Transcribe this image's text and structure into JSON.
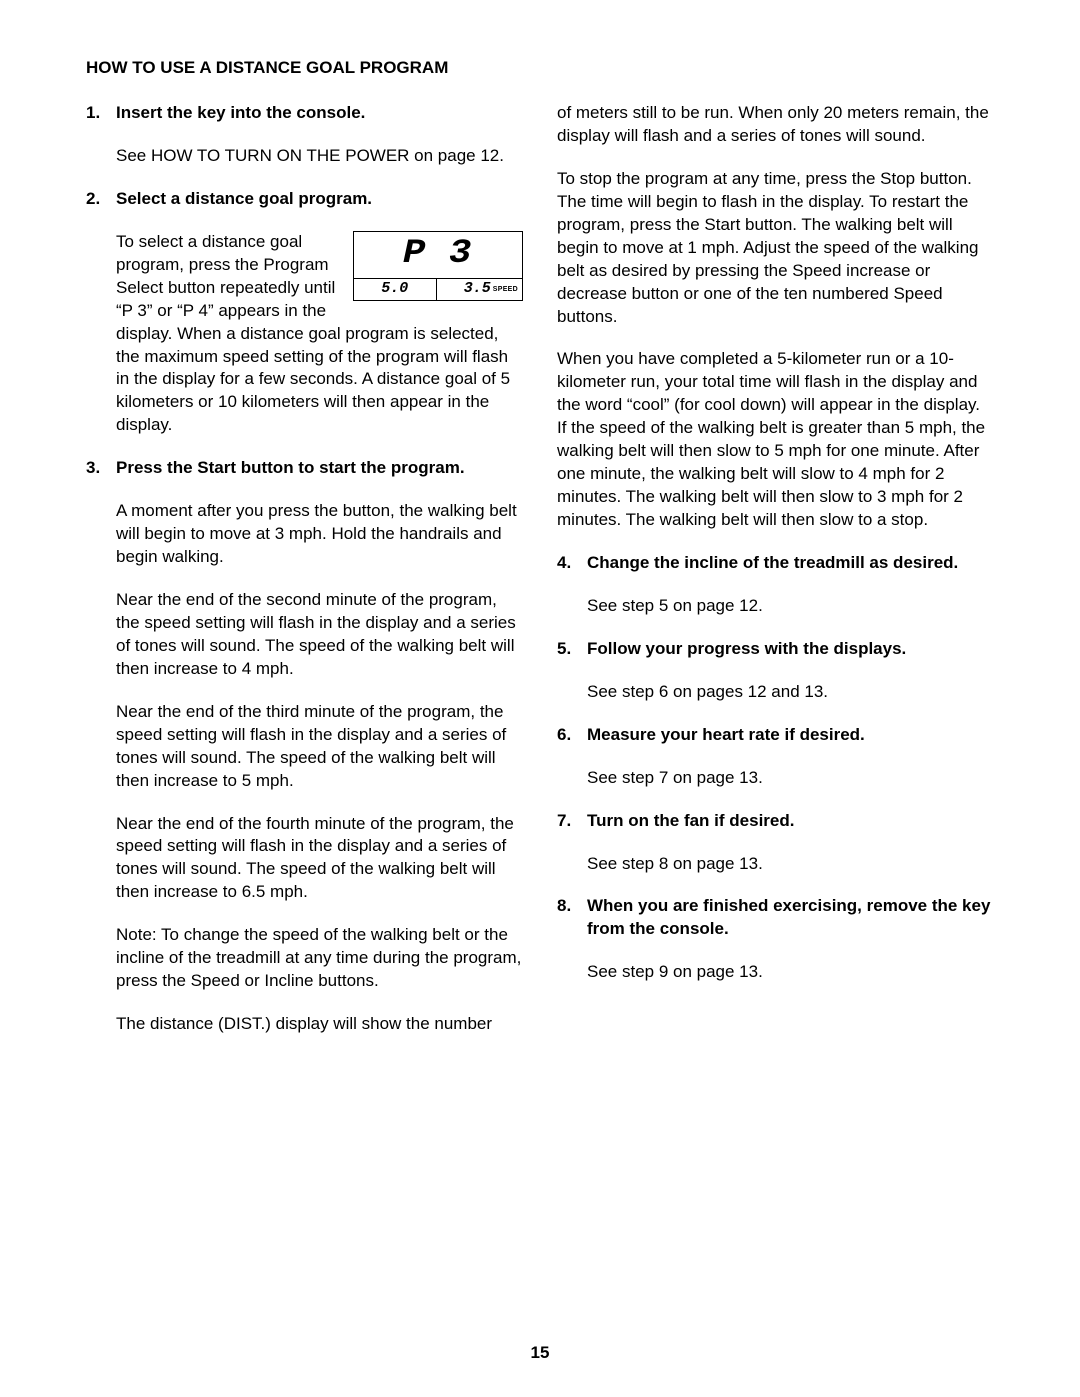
{
  "heading": "HOW TO USE A DISTANCE GOAL PROGRAM",
  "page_number": "15",
  "lcd": {
    "top_left": "P",
    "top_right": "3",
    "bottom_left": "5.0",
    "bottom_right": "3.5",
    "speed_label": "SPEED"
  },
  "left": {
    "s1_num": "1.",
    "s1_title": "Insert the key into the console.",
    "s1_p1": "See HOW TO TURN ON THE POWER on page 12.",
    "s2_num": "2.",
    "s2_title": "Select a distance goal program.",
    "s2_p1a": "To select a distance goal program, press the Program Select button repeatedly until “P 3” or “P 4” appears in the display. When a",
    "s2_p1b": "distance goal program is selected, the maximum speed setting of the program will flash in the display for a few seconds. A distance goal of 5 kilometers or 10 kilometers will then appear in the display.",
    "s3_num": "3.",
    "s3_title": "Press the Start button to start the program.",
    "s3_p1": "A moment after you press the button, the walking belt will begin to move at 3 mph. Hold the handrails and begin walking.",
    "s3_p2": "Near the end of the second minute of the program, the speed setting will flash in the display and a series of tones will sound. The speed of the walking belt will then increase to 4 mph.",
    "s3_p3": "Near the end of the third minute of the program, the speed setting will flash in the display and a series of tones will sound. The speed of the walking belt will then increase to 5 mph.",
    "s3_p4": "Near the end of the fourth minute of the program, the speed setting will flash in the display and a series of tones will sound. The speed of the walking belt will then increase to 6.5 mph.",
    "s3_p5": "Note: To change the speed of the walking belt or the incline of the treadmill at any time during the program, press the Speed or Incline buttons.",
    "s3_p6": "The distance (DIST.) display will show the number"
  },
  "right": {
    "cont_p1": "of meters still to be run. When only 20 meters remain, the display will flash and a series of tones will sound.",
    "cont_p2": "To stop the program at any time, press the Stop button. The time will begin to flash in the display. To restart the program, press the Start button. The walking belt will begin to move at 1 mph. Adjust the speed of the walking belt as desired by pressing the Speed increase or decrease button or one of the ten numbered Speed buttons.",
    "cont_p3": "When you have completed a 5-kilometer run or a 10-kilometer run, your total time will flash in the display and the word “cool” (for cool down) will appear in the display. If the speed of the walking belt is greater than 5 mph, the walking belt will then slow to 5 mph for one minute. After one minute, the walking belt will slow to 4 mph for 2 minutes. The walking belt will then slow to 3 mph for 2 minutes. The walking belt will then slow to a stop.",
    "s4_num": "4.",
    "s4_title": "Change the incline of the treadmill as desired.",
    "s4_p1": "See step 5 on page 12.",
    "s5_num": "5.",
    "s5_title": "Follow your progress with the displays.",
    "s5_p1": "See step 6 on pages 12 and 13.",
    "s6_num": "6.",
    "s6_title": "Measure your heart rate if desired.",
    "s6_p1": "See step 7 on page 13.",
    "s7_num": "7.",
    "s7_title": "Turn on the fan if desired.",
    "s7_p1": "See step 8 on page 13.",
    "s8_num": "8.",
    "s8_title": "When you are finished exercising, remove the key from the console.",
    "s8_p1": "See step 9 on page 13."
  }
}
